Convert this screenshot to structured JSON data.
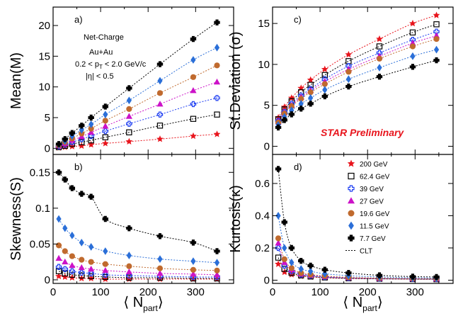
{
  "chart_data": {
    "type": "scatter",
    "series": [
      {
        "name": "200 GeV",
        "color": "#e8141c",
        "marker": "star"
      },
      {
        "name": "62.4 GeV",
        "color": "#000000",
        "marker": "open-square"
      },
      {
        "name": "39 GeV",
        "color": "#1f3ff2",
        "marker": "open-cross"
      },
      {
        "name": "27 GeV",
        "color": "#cc12c8",
        "marker": "triangle"
      },
      {
        "name": "19.6 GeV",
        "color": "#c06a2e",
        "marker": "circle"
      },
      {
        "name": "11.5 GeV",
        "color": "#2b6fd8",
        "marker": "diamond"
      },
      {
        "name": "7.7 GeV",
        "color": "#000000",
        "marker": "cross"
      }
    ],
    "clt_label": "CLT",
    "x": [
      12,
      25,
      40,
      60,
      80,
      110,
      160,
      225,
      295,
      345
    ],
    "xlabel": "⟨ N",
    "xlabel_sub": "part",
    "xlabel_close": "⟩",
    "panels": [
      {
        "id": "a",
        "label": "a)",
        "ylabel": "Mean(M)",
        "xlim": [
          0,
          380
        ],
        "ylim": [
          -1,
          23
        ],
        "xticks": [
          0,
          100,
          200,
          300
        ],
        "yticks": [
          0,
          5,
          10,
          15,
          20
        ],
        "xticklabels": [],
        "yticklabels": [
          "0",
          "5",
          "10",
          "15",
          "20"
        ],
        "annotations": [
          "Net-Charge",
          "Au+Au",
          "0.2 < p",
          "T",
          " < 2.0 GeV/c",
          "|η| < 0.5"
        ],
        "values": [
          [
            0.1,
            0.2,
            0.3,
            0.4,
            0.6,
            0.8,
            1.1,
            1.5,
            2.0,
            2.3
          ],
          [
            0.2,
            0.4,
            0.7,
            1.0,
            1.3,
            1.8,
            2.6,
            3.7,
            4.8,
            5.5
          ],
          [
            0.3,
            0.6,
            1.0,
            1.5,
            2.0,
            2.8,
            4.0,
            5.5,
            7.2,
            8.2
          ],
          [
            0.4,
            0.8,
            1.3,
            1.9,
            2.6,
            3.6,
            5.2,
            7.2,
            9.4,
            10.8
          ],
          [
            0.5,
            1.0,
            1.6,
            2.4,
            3.2,
            4.5,
            6.4,
            9.0,
            11.6,
            13.5
          ],
          [
            0.6,
            1.2,
            2.0,
            3.0,
            3.9,
            5.5,
            7.8,
            11.0,
            14.4,
            16.4
          ],
          [
            0.7,
            1.5,
            2.5,
            3.7,
            5.0,
            6.8,
            9.8,
            13.7,
            17.8,
            20.5
          ]
        ]
      },
      {
        "id": "b",
        "label": "b)",
        "ylabel": "Skewness(S)",
        "xlim": [
          0,
          380
        ],
        "ylim": [
          -0.005,
          0.175
        ],
        "xticks": [
          0,
          100,
          200,
          300
        ],
        "yticks": [
          0,
          0.05,
          0.1,
          0.15
        ],
        "xticklabels": [
          "0",
          "100",
          "200",
          "300"
        ],
        "yticklabels": [
          "0",
          "0.05",
          "0.1",
          "0.15"
        ],
        "annotations": [],
        "values": [
          [
            0.005,
            0.004,
            0.003,
            0.002,
            0.002,
            0.001,
            0.001,
            0.001,
            0.001,
            0.001
          ],
          [
            0.012,
            0.009,
            0.007,
            0.006,
            0.005,
            0.004,
            0.003,
            0.003,
            0.002,
            0.002
          ],
          [
            0.018,
            0.015,
            0.012,
            0.01,
            0.009,
            0.007,
            0.006,
            0.005,
            0.004,
            0.004
          ],
          [
            0.03,
            0.025,
            0.02,
            0.017,
            0.015,
            0.013,
            0.011,
            0.009,
            0.008,
            0.007
          ],
          [
            0.048,
            0.04,
            0.033,
            0.028,
            0.025,
            0.022,
            0.019,
            0.016,
            0.014,
            0.013
          ],
          [
            0.085,
            0.072,
            0.062,
            0.052,
            0.046,
            0.04,
            0.034,
            0.029,
            0.026,
            0.024
          ],
          [
            0.15,
            0.14,
            0.128,
            0.12,
            0.116,
            0.085,
            0.072,
            0.061,
            0.052,
            0.04
          ]
        ]
      },
      {
        "id": "c",
        "label": "c)",
        "ylabel": "St.Deviation (σ)",
        "xlim": [
          0,
          380
        ],
        "ylim": [
          -1,
          17
        ],
        "xticks": [
          0,
          100,
          200,
          300
        ],
        "yticks": [
          0,
          5,
          10,
          15
        ],
        "xticklabels": [],
        "yticklabels": [
          "0",
          "5",
          "10",
          "15"
        ],
        "annotations": [
          "STAR Preliminary"
        ],
        "values": [
          [
            3.5,
            4.8,
            5.9,
            7.1,
            8.1,
            9.4,
            11.2,
            13.1,
            15.0,
            16.0
          ],
          [
            3.3,
            4.5,
            5.5,
            6.6,
            7.5,
            8.7,
            10.4,
            12.2,
            13.9,
            14.9
          ],
          [
            3.1,
            4.2,
            5.2,
            6.2,
            7.0,
            8.2,
            9.8,
            11.4,
            13.0,
            14.0
          ],
          [
            3.0,
            4.1,
            5.0,
            6.0,
            6.8,
            7.9,
            9.4,
            11.0,
            12.6,
            13.5
          ],
          [
            2.9,
            4.0,
            4.9,
            5.8,
            6.6,
            7.6,
            9.1,
            10.7,
            12.2,
            13.1
          ],
          [
            2.6,
            3.6,
            4.4,
            5.2,
            5.9,
            6.9,
            8.2,
            9.6,
            11.0,
            11.8
          ],
          [
            2.3,
            3.2,
            3.9,
            4.6,
            5.2,
            6.1,
            7.3,
            8.5,
            9.7,
            10.5
          ]
        ]
      },
      {
        "id": "d",
        "label": "d)",
        "ylabel": "Kurtosis(κ)",
        "xlim": [
          0,
          380
        ],
        "ylim": [
          -0.02,
          0.78
        ],
        "xticks": [
          0,
          100,
          200,
          300
        ],
        "yticks": [
          0,
          0.2,
          0.4,
          0.6
        ],
        "xticklabels": [
          "0",
          "100",
          "200",
          "300"
        ],
        "yticklabels": [
          "0",
          "0.2",
          "0.4",
          "0.6"
        ],
        "annotations": [],
        "values": [
          [
            0.1,
            0.05,
            0.035,
            0.025,
            0.02,
            0.015,
            0.01,
            0.008,
            0.006,
            0.005
          ],
          [
            0.14,
            0.07,
            0.045,
            0.03,
            0.023,
            0.017,
            0.012,
            0.009,
            0.007,
            0.006
          ],
          [
            0.2,
            0.09,
            0.055,
            0.035,
            0.028,
            0.02,
            0.014,
            0.01,
            0.008,
            0.007
          ],
          [
            0.23,
            0.11,
            0.065,
            0.04,
            0.032,
            0.023,
            0.016,
            0.011,
            0.009,
            0.008
          ],
          [
            0.26,
            0.13,
            0.075,
            0.045,
            0.035,
            0.026,
            0.018,
            0.013,
            0.01,
            0.009
          ],
          [
            0.4,
            0.2,
            0.11,
            0.07,
            0.055,
            0.04,
            0.028,
            0.02,
            0.015,
            0.013
          ],
          [
            0.69,
            0.36,
            0.2,
            0.12,
            0.09,
            0.065,
            0.045,
            0.03,
            0.022,
            0.02
          ]
        ]
      }
    ]
  }
}
